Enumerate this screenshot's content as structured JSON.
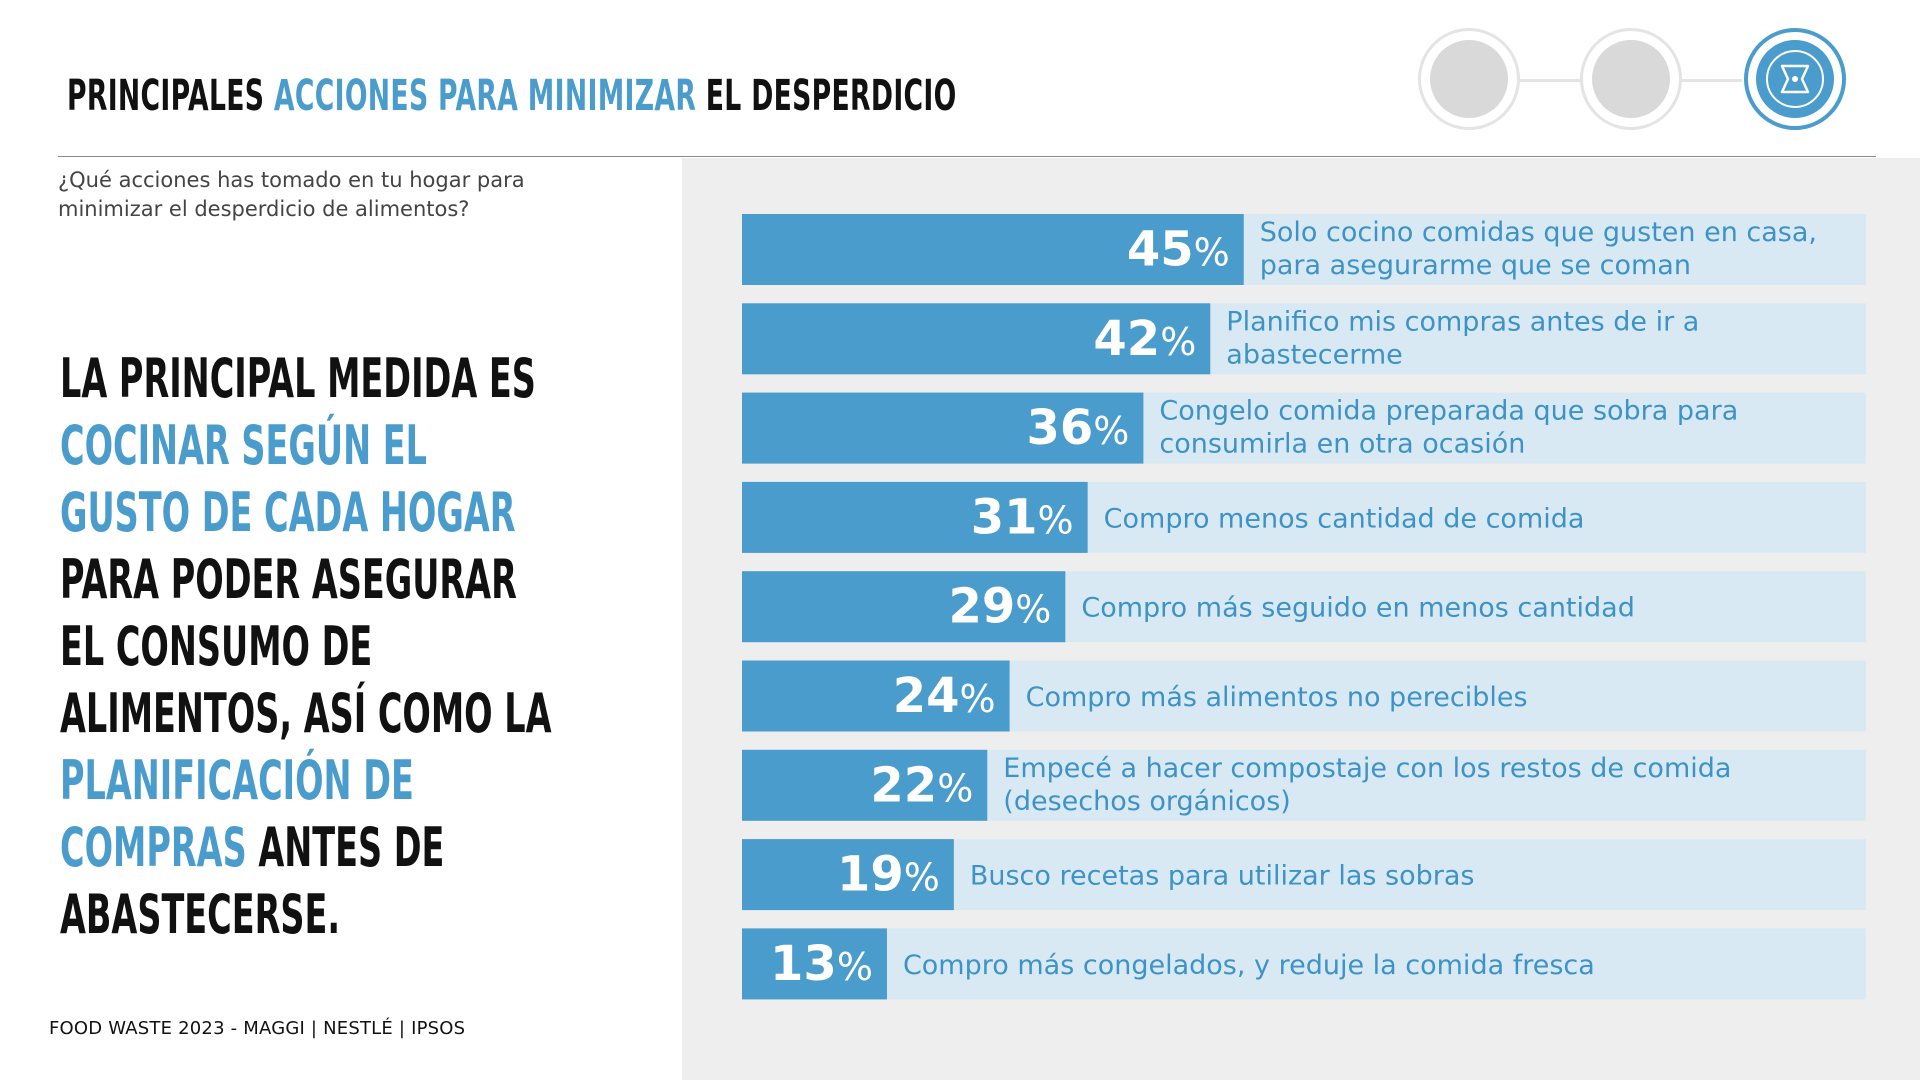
{
  "title": {
    "part1": "PRINCIPALES ",
    "part2": "ACCIONES PARA MINIMIZAR",
    "part3": " EL DESPERDICIO"
  },
  "question": "¿Qué acciones has tomado en tu hogar para minimizar el desperdicio de alimentos?",
  "headline": {
    "t1": "LA PRINCIPAL MEDIDA ES ",
    "t2": "COCINAR SEGÚN EL GUSTO DE CADA HOGAR",
    "t3": " PARA PODER ASEGURAR EL CONSUMO DE ALIMENTOS, ASÍ COMO LA ",
    "t4": "PLANIFICACIÓN DE COMPRAS",
    "t5": " ANTES DE ABASTECERSE."
  },
  "footer": "FOOD WASTE 2023 - MAGGI | NESTLÉ | IPSOS",
  "colors": {
    "accent": "#4a9ccc",
    "bar": "#4a9ccc",
    "bar_track": "#d9e9f4",
    "label": "#3d93c6"
  },
  "chart_data": {
    "type": "bar",
    "orientation": "horizontal",
    "categories": [
      [
        "Solo cocino comidas que gusten en casa,",
        "para asegurarme que se coman"
      ],
      [
        "Planifico mis compras antes de ir a",
        "abastecerme"
      ],
      [
        "Congelo comida preparada que sobra para",
        "consumirla en otra ocasión"
      ],
      [
        "Compro menos cantidad de comida"
      ],
      [
        "Compro más seguido en menos cantidad"
      ],
      [
        "Compro más alimentos no perecibles"
      ],
      [
        "Empecé a hacer compostaje con los restos de comida",
        "(desechos orgánicos)"
      ],
      [
        "Busco recetas para utilizar las sobras"
      ],
      [
        "Compro más congelados, y reduje la comida fresca"
      ]
    ],
    "values": [
      45,
      42,
      36,
      31,
      29,
      24,
      22,
      19,
      13
    ],
    "unit": "%",
    "xlim": [
      0,
      100
    ]
  }
}
